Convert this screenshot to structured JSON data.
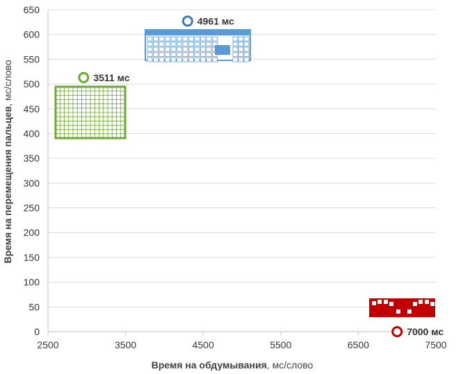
{
  "chart_data": {
    "type": "scatter",
    "xlim": [
      2500,
      7500
    ],
    "ylim": [
      0,
      650
    ],
    "x_ticks": [
      2500,
      3500,
      4500,
      5500,
      6500,
      7500
    ],
    "y_ticks": [
      0,
      50,
      100,
      150,
      200,
      250,
      300,
      350,
      400,
      450,
      500,
      550,
      600,
      650
    ],
    "xlabel_bold": "Время на обдумывания",
    "xlabel_rest": ",  мс/слово",
    "ylabel_bold": "Время на перемещения пальцев",
    "ylabel_rest": ", мс/слово",
    "grid": "horizontal",
    "points": [
      {
        "x": 4300,
        "y": 627,
        "label": "4961 мс",
        "color": "#3d7ab8",
        "icon": "keyboard-icon"
      },
      {
        "x": 2960,
        "y": 513,
        "label": "3511 мс",
        "color": "#6aaa2e",
        "icon": "grid-keypad-icon"
      },
      {
        "x": 7000,
        "y": 0,
        "label": "7000 мс",
        "color": "#c00000",
        "icon": "compact-keyboard-icon"
      }
    ]
  },
  "colors": {
    "grid": "#d9d9d9",
    "axis": "#bfbfbf",
    "keyboard": "#5b9bd5",
    "keypad": "#6aaa2e",
    "compact": "#c00000"
  }
}
